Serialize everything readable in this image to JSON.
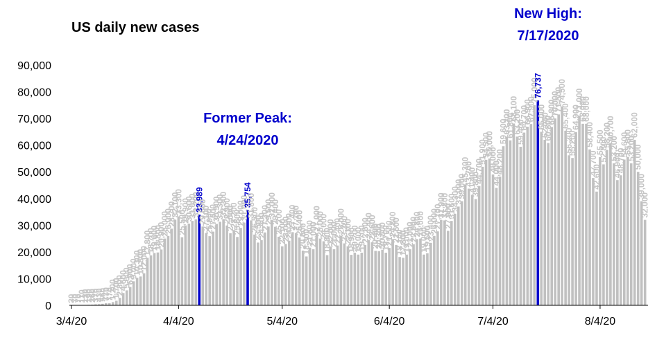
{
  "chart_data": {
    "type": "bar",
    "title": "US daily new cases",
    "color": "#c0c0c0",
    "highlight": {
      "color": "#0000cc",
      "indices": [
        37,
        51,
        135
      ]
    },
    "annotations": [
      {
        "lines": [
          "Former Peak:",
          "4/24/2020"
        ]
      },
      {
        "lines": [
          "New High:",
          "7/17/2020"
        ]
      }
    ],
    "ylim": [
      0,
      90000
    ],
    "yticks": [
      0,
      {
        "value": 10000,
        "label": "10,000"
      },
      {
        "value": 20000,
        "label": "20,000"
      },
      {
        "value": 30000,
        "label": "30,000"
      },
      {
        "value": 40000,
        "label": "40,000"
      },
      {
        "value": 50000,
        "label": "50,000"
      },
      {
        "value": 60000,
        "label": "60,000"
      },
      {
        "value": 70000,
        "label": "70,000"
      },
      {
        "value": 80000,
        "label": "80,000"
      },
      {
        "value": 90000,
        "label": "90,000"
      }
    ],
    "grid": false,
    "categories": [
      "3/4/20",
      null,
      null,
      null,
      null,
      null,
      null,
      null,
      null,
      null,
      null,
      null,
      null,
      null,
      null,
      null,
      null,
      null,
      null,
      null,
      null,
      null,
      null,
      null,
      null,
      null,
      null,
      null,
      null,
      null,
      null,
      "4/4/20",
      null,
      null,
      null,
      null,
      null,
      null,
      null,
      null,
      null,
      null,
      null,
      null,
      null,
      null,
      null,
      null,
      null,
      null,
      null,
      null,
      null,
      null,
      null,
      null,
      null,
      null,
      null,
      null,
      null,
      "5/4/20",
      null,
      null,
      null,
      null,
      null,
      null,
      null,
      null,
      null,
      null,
      null,
      null,
      null,
      null,
      null,
      null,
      null,
      null,
      null,
      null,
      null,
      null,
      null,
      null,
      null,
      null,
      null,
      null,
      null,
      null,
      "6/4/20",
      null,
      null,
      null,
      null,
      null,
      null,
      null,
      null,
      null,
      null,
      null,
      null,
      null,
      null,
      null,
      null,
      null,
      null,
      null,
      null,
      null,
      null,
      null,
      null,
      null,
      null,
      null,
      null,
      null,
      "7/4/20",
      null,
      null,
      null,
      null,
      null,
      null,
      null,
      null,
      null,
      null,
      null,
      null,
      null,
      null,
      null,
      null,
      null,
      null,
      null,
      null,
      null,
      null,
      null,
      null,
      null,
      null,
      null,
      null,
      null,
      null,
      "8/4/20",
      null,
      null,
      null,
      null,
      null,
      null,
      null,
      null,
      null,
      null,
      null,
      null,
      null
    ],
    "values": [
      30,
      70,
      70,
      110,
      130,
      190,
      260,
      370,
      430,
      560,
      770,
      770,
      1200,
      1700,
      2800,
      4600,
      5600,
      6900,
      9000,
      10300,
      10800,
      12000,
      17800,
      18700,
      19600,
      19800,
      20900,
      25000,
      26000,
      28700,
      32100,
      33300,
      25500,
      29900,
      30600,
      31600,
      32200,
      33989,
      29500,
      27100,
      25900,
      27600,
      30500,
      31300,
      32300,
      29900,
      27000,
      28200,
      25600,
      29000,
      31000,
      35754,
      31800,
      26500,
      23500,
      24400,
      27300,
      29500,
      32000,
      29400,
      25700,
      22100,
      23000,
      24200,
      27400,
      27100,
      25400,
      20500,
      18300,
      21600,
      21000,
      27000,
      25000,
      24000,
      18800,
      22000,
      21000,
      22400,
      26000,
      23200,
      22100,
      18900,
      19700,
      19000,
      19700,
      22600,
      24400,
      23600,
      20400,
      20300,
      20800,
      19700,
      21500,
      24800,
      22600,
      18100,
      17800,
      19000,
      21000,
      22900,
      24800,
      25000,
      19000,
      19500,
      23400,
      26000,
      27700,
      31900,
      31800,
      27900,
      31600,
      34300,
      37000,
      39000,
      45300,
      43700,
      41400,
      39800,
      44700,
      51900,
      54500,
      55000,
      49000,
      44000,
      48200,
      59600,
      63200,
      61800,
      68100,
      63200,
      59400,
      64700,
      66900,
      67900,
      75000,
      76737,
      65000,
      62000,
      60800,
      66800,
      70000,
      71500,
      74500,
      65400,
      56200,
      55200,
      64900,
      71000,
      68000,
      68000,
      58400,
      47700,
      42600,
      55500,
      52800,
      58200,
      60700,
      53200,
      46900,
      48700,
      54600,
      55600,
      53200,
      62000,
      50000,
      39000,
      32000
    ],
    "value_labels": [
      "30",
      "70",
      "70",
      "110",
      "130",
      "190",
      "260",
      "370",
      "430",
      "560",
      "770",
      "770",
      "1,200",
      "1,700",
      "2,800",
      "4,600",
      "5,600",
      "6,900",
      "9,000",
      "10,300",
      "10,800",
      "12,000",
      "17,800",
      "18,700",
      "19,600",
      "19,800",
      "20,900",
      "25,000",
      "26,000",
      "28,700",
      "32,100",
      "33,300",
      "25,500",
      "29,900",
      "30,600",
      "31,600",
      "32,200",
      "33,989",
      "29,500",
      "27,100",
      "25,900",
      "27,600",
      "30,500",
      "31,300",
      "32,300",
      "29,900",
      "27,000",
      "28,200",
      "25,600",
      "29,000",
      "31,000",
      "35,754",
      "31,800",
      "26,500",
      "23,500",
      "24,400",
      "27,300",
      "29,500",
      "32,000",
      "29,400",
      "25,700",
      "22,100",
      "23,000",
      "24,200",
      "27,400",
      "27,100",
      "25,400",
      "20,500",
      "18,300",
      "21,600",
      "21,000",
      "27,000",
      "25,000",
      "24,000",
      "18,800",
      "22,000",
      "21,000",
      "22,400",
      "26,000",
      "23,200",
      "22,100",
      "18,900",
      "19,700",
      "19,000",
      "19,700",
      "22,600",
      "24,400",
      "23,600",
      "20,400",
      "20,300",
      "20,800",
      "19,700",
      "21,500",
      "24,800",
      "22,600",
      "18,100",
      "17,800",
      "19,000",
      "21,000",
      "22,900",
      "24,800",
      "25,000",
      "19,000",
      "19,500",
      "23,400",
      "26,000",
      "27,700",
      "31,900",
      "31,800",
      "27,900",
      "31,600",
      "34,300",
      "37,000",
      "39,000",
      "45,300",
      "43,700",
      "41,400",
      "39,800",
      "44,700",
      "51,900",
      "54,500",
      "55,000",
      "49,000",
      "44,000",
      "48,200",
      "59,600",
      "63,200",
      "61,800",
      "68,100",
      "63,200",
      "59,400",
      "64,700",
      "66,900",
      "67,900",
      "75,000",
      "76,737",
      "65,000",
      "62,000",
      "60,800",
      "66,800",
      "70,000",
      "71,500",
      "74,500",
      "65,400",
      "56,200",
      "55,200",
      "64,900",
      "71,000",
      "68,000",
      "68,000",
      "58,400",
      "47,700",
      "42,600",
      "55,500",
      "52,800",
      "58,200",
      "60,700",
      "53,200",
      "46,900",
      "48,700",
      "54,600",
      "55,600",
      "53,200",
      "62,000",
      "50,000",
      "39,000",
      "32,000"
    ]
  }
}
